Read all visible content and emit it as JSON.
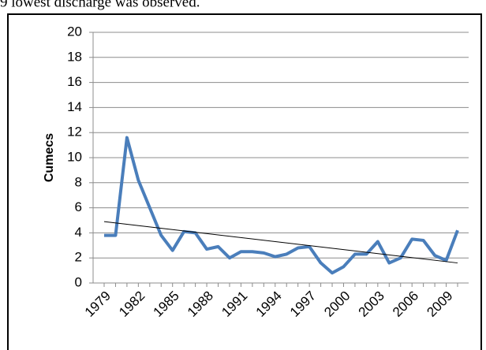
{
  "document_text": "9 lowest discharge was observed.",
  "chart_data": {
    "type": "line",
    "y_label": "Cumecs",
    "categories": [
      "1979",
      null,
      null,
      "1982",
      null,
      null,
      "1985",
      null,
      null,
      "1988",
      null,
      null,
      "1991",
      null,
      null,
      "1994",
      null,
      null,
      "1997",
      null,
      null,
      "2000",
      null,
      null,
      "2003",
      null,
      null,
      "2006",
      null,
      null,
      "2009",
      null
    ],
    "series": [
      {
        "color": "#4a7ebb",
        "values": [
          3.8,
          3.8,
          11.6,
          8.2,
          6.0,
          3.8,
          2.6,
          4.1,
          4.0,
          2.7,
          2.9,
          2.0,
          2.5,
          2.5,
          2.4,
          2.1,
          2.3,
          2.8,
          2.9,
          1.6,
          0.8,
          1.3,
          2.3,
          2.3,
          3.3,
          1.6,
          2.0,
          3.5,
          3.4,
          2.2,
          1.8,
          4.2
        ]
      }
    ],
    "trendline": {
      "color": "#000000",
      "values": [
        4.9,
        1.6
      ]
    },
    "ylim": [
      0,
      20
    ],
    "yticks": [
      0,
      2,
      4,
      6,
      8,
      10,
      12,
      14,
      16,
      18,
      20
    ],
    "grid": true
  }
}
